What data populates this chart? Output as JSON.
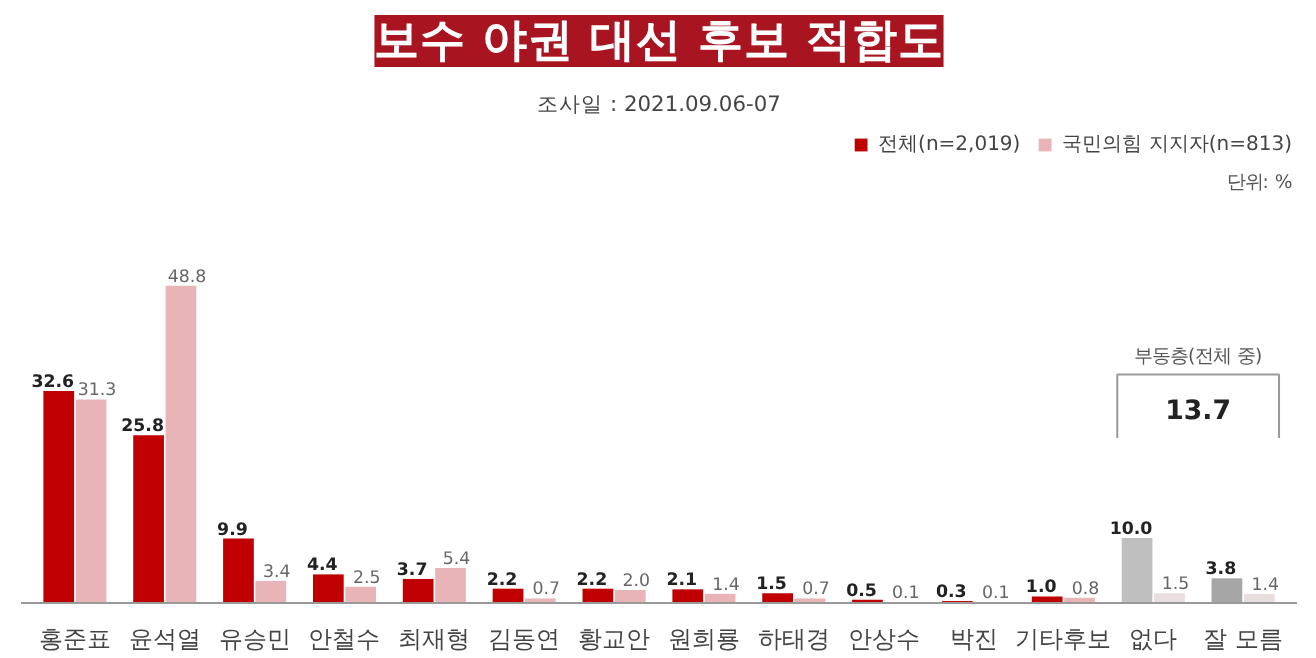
{
  "chart_data": {
    "type": "bar",
    "title": "보수 야권 대선 후보 적합도",
    "subtitle": "조사일 : 2021.09.06-07",
    "categories": [
      "홍준표",
      "윤석열",
      "유승민",
      "안철수",
      "최재형",
      "김동연",
      "황교안",
      "원희룡",
      "하태경",
      "안상수",
      "박진",
      "기타후보",
      "없다",
      "잘 모름"
    ],
    "series": [
      {
        "name": "전체(n=2,019)",
        "color": "#c00000",
        "colors": [
          null,
          null,
          null,
          null,
          null,
          null,
          null,
          null,
          null,
          null,
          null,
          null,
          "#bfbfbf",
          "#a6a6a6"
        ],
        "values": [
          32.6,
          25.8,
          9.9,
          4.4,
          3.7,
          2.2,
          2.2,
          2.1,
          1.5,
          0.5,
          0.3,
          1.0,
          10.0,
          3.8
        ],
        "value_labels": [
          "32.6",
          "25.8",
          "9.9",
          "4.4",
          "3.7",
          "2.2",
          "2.2",
          "2.1",
          "1.5",
          "0.5",
          "0.3",
          "1.0",
          "10.0",
          "3.8"
        ]
      },
      {
        "name": "국민의힘 지지자(n=813)",
        "color": "#e8b4b8",
        "colors": [
          null,
          null,
          null,
          null,
          null,
          null,
          null,
          null,
          null,
          null,
          null,
          null,
          "#e8dede",
          "#e8dede"
        ],
        "values": [
          31.3,
          48.8,
          3.4,
          2.5,
          5.4,
          0.7,
          2.0,
          1.4,
          0.7,
          0.1,
          0.1,
          0.8,
          1.5,
          1.4
        ],
        "value_labels": [
          "31.3",
          "48.8",
          "3.4",
          "2.5",
          "5.4",
          "0.7",
          "2.0",
          "1.4",
          "0.7",
          "0.1",
          "0.1",
          "0.8",
          "1.5",
          "1.4"
        ]
      }
    ],
    "annotations": [
      "단위: %",
      "부동층(전체 중)",
      "13.7"
    ],
    "legend": "top right",
    "grid": false
  }
}
